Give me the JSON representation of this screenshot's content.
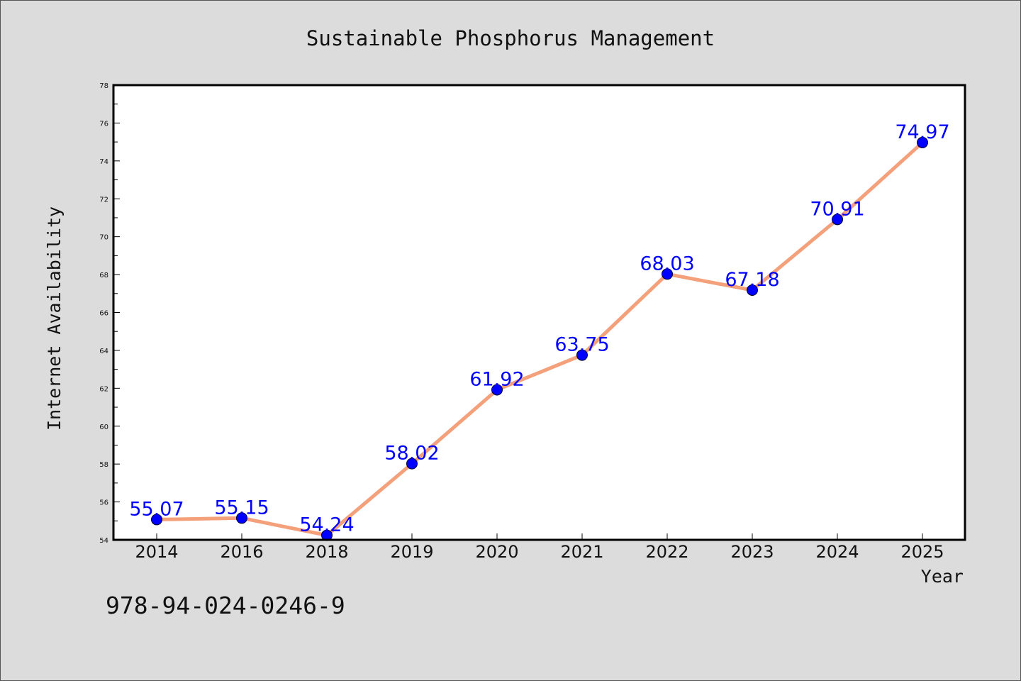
{
  "chart_data": {
    "type": "line",
    "title": "Sustainable Phosphorus Management",
    "xlabel": "Year",
    "ylabel": "Internet Availability",
    "categories": [
      "2014",
      "2016",
      "2018",
      "2019",
      "2020",
      "2021",
      "2022",
      "2023",
      "2024",
      "2025"
    ],
    "series": [
      {
        "values": [
          55.07,
          55.15,
          54.24,
          58.02,
          61.92,
          63.75,
          68.03,
          67.18,
          70.91,
          74.97
        ],
        "data_labels": [
          "55.07",
          "55.15",
          "54.24",
          "58.02",
          "61.92",
          "63.75",
          "68.03",
          "67.18",
          "70.91",
          "74.97"
        ]
      }
    ],
    "ylim": [
      54,
      78
    ],
    "yticks": [
      "54",
      "56",
      "58",
      "60",
      "62",
      "64",
      "66",
      "68",
      "70",
      "72",
      "74",
      "76",
      "78"
    ],
    "grid": false,
    "legend": "none",
    "colors": {
      "line": "#f4a07a",
      "marker": "#0000ff",
      "data_label": "#0000ff",
      "plot_background": "#ffffff",
      "figure_background": "#dcdcdc"
    }
  },
  "footer": {
    "isbn": "978-94-024-0246-9"
  }
}
